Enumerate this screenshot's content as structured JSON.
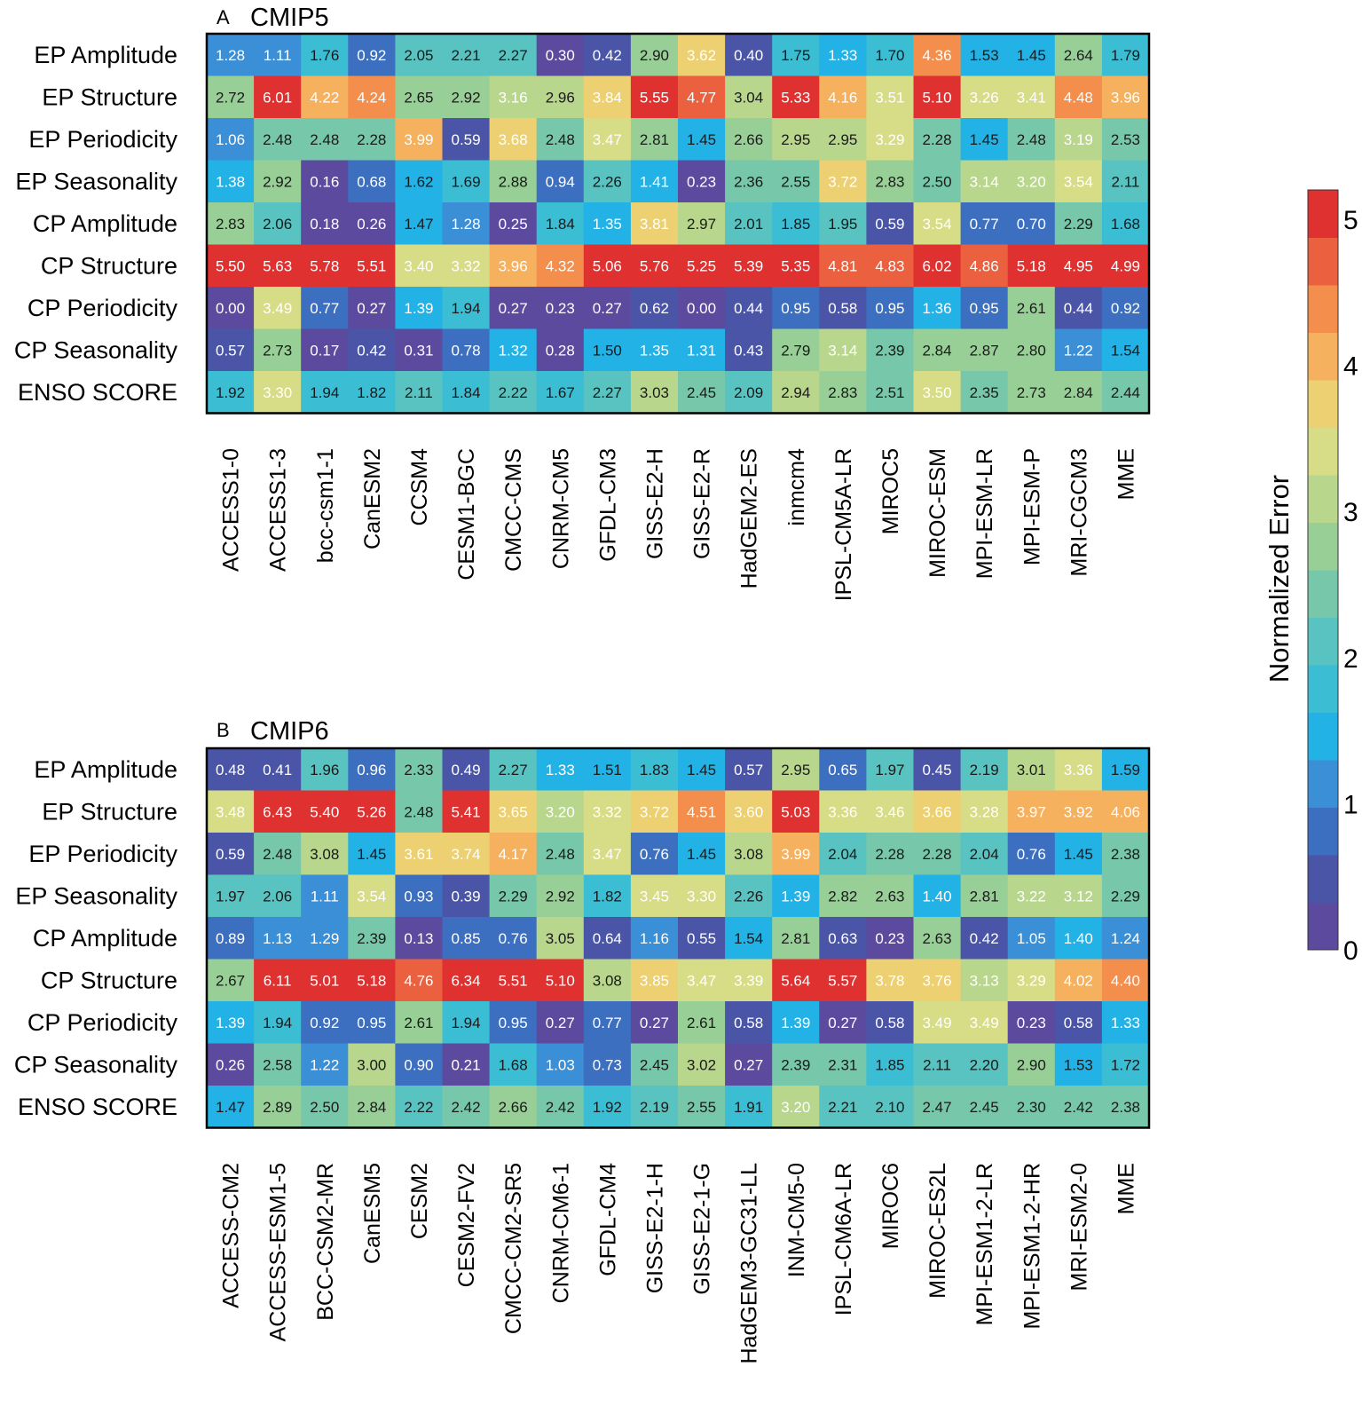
{
  "chart_data": [
    {
      "type": "heatmap",
      "panel_letter": "A",
      "title": "CMIP5",
      "rows": [
        "EP Amplitude",
        "EP Structure",
        "EP Periodicity",
        "EP Seasonality",
        "CP Amplitude",
        "CP Structure",
        "CP Periodicity",
        "CP Seasonality",
        "ENSO SCORE"
      ],
      "columns": [
        "ACCESS1-0",
        "ACCESS1-3",
        "bcc-csm1-1",
        "CanESM2",
        "CCSM4",
        "CESM1-BGC",
        "CMCC-CMS",
        "CNRM-CM5",
        "GFDL-CM3",
        "GISS-E2-H",
        "GISS-E2-R",
        "HadGEM2-ES",
        "inmcm4",
        "IPSL-CM5A-LR",
        "MIROC5",
        "MIROC-ESM",
        "MPI-ESM-LR",
        "MPI-ESM-P",
        "MRI-CGCM3",
        "MME"
      ],
      "values": [
        [
          1.28,
          1.11,
          1.76,
          0.92,
          2.05,
          2.21,
          2.27,
          0.3,
          0.42,
          2.9,
          3.62,
          0.4,
          1.75,
          1.33,
          1.7,
          4.36,
          1.53,
          1.45,
          2.64,
          1.79
        ],
        [
          2.72,
          6.01,
          4.22,
          4.24,
          2.65,
          2.92,
          3.16,
          2.96,
          3.84,
          5.55,
          4.77,
          3.04,
          5.33,
          4.16,
          3.51,
          5.1,
          3.26,
          3.41,
          4.48,
          3.96
        ],
        [
          1.06,
          2.48,
          2.48,
          2.28,
          3.99,
          0.59,
          3.68,
          2.48,
          3.47,
          2.81,
          1.45,
          2.66,
          2.95,
          2.95,
          3.29,
          2.28,
          1.45,
          2.48,
          3.19,
          2.53
        ],
        [
          1.38,
          2.92,
          0.16,
          0.68,
          1.62,
          1.69,
          2.88,
          0.94,
          2.26,
          1.41,
          0.23,
          2.36,
          2.55,
          3.72,
          2.83,
          2.5,
          3.14,
          3.2,
          3.54,
          2.11
        ],
        [
          2.83,
          2.06,
          0.18,
          0.26,
          1.47,
          1.28,
          0.25,
          1.84,
          1.35,
          3.81,
          2.97,
          2.01,
          1.85,
          1.95,
          0.59,
          3.54,
          0.77,
          0.7,
          2.29,
          1.68
        ],
        [
          5.5,
          5.63,
          5.78,
          5.51,
          3.4,
          3.32,
          3.96,
          4.32,
          5.06,
          5.76,
          5.25,
          5.39,
          5.35,
          4.81,
          4.83,
          6.02,
          4.86,
          5.18,
          4.95,
          4.99
        ],
        [
          0.0,
          3.49,
          0.77,
          0.27,
          1.39,
          1.94,
          0.27,
          0.23,
          0.27,
          0.62,
          0.0,
          0.44,
          0.95,
          0.58,
          0.95,
          1.36,
          0.95,
          2.61,
          0.44,
          0.92
        ],
        [
          0.57,
          2.73,
          0.17,
          0.42,
          0.31,
          0.78,
          1.32,
          0.28,
          1.5,
          1.35,
          1.31,
          0.43,
          2.79,
          3.14,
          2.39,
          2.84,
          2.87,
          2.8,
          1.22,
          1.54
        ],
        [
          1.92,
          3.3,
          1.94,
          1.82,
          2.11,
          1.84,
          2.22,
          1.67,
          2.27,
          3.03,
          2.45,
          2.09,
          2.94,
          2.83,
          2.51,
          3.5,
          2.35,
          2.73,
          2.84,
          2.44
        ]
      ],
      "value_format": "2 decimals"
    },
    {
      "type": "heatmap",
      "panel_letter": "B",
      "title": "CMIP6",
      "rows": [
        "EP Amplitude",
        "EP Structure",
        "EP Periodicity",
        "EP Seasonality",
        "CP Amplitude",
        "CP Structure",
        "CP Periodicity",
        "CP Seasonality",
        "ENSO SCORE"
      ],
      "columns": [
        "ACCESS-CM2",
        "ACCESS-ESM1-5",
        "BCC-CSM2-MR",
        "CanESM5",
        "CESM2",
        "CESM2-FV2",
        "CMCC-CM2-SR5",
        "CNRM-CM6-1",
        "GFDL-CM4",
        "GISS-E2-1-H",
        "GISS-E2-1-G",
        "HadGEM3-GC31-LL",
        "INM-CM5-0",
        "IPSL-CM6A-LR",
        "MIROC6",
        "MIROC-ES2L",
        "MPI-ESM1-2-LR",
        "MPI-ESM1-2-HR",
        "MRI-ESM2-0",
        "MME"
      ],
      "values": [
        [
          0.48,
          0.41,
          1.96,
          0.96,
          2.33,
          0.49,
          2.27,
          1.33,
          1.51,
          1.83,
          1.45,
          0.57,
          2.95,
          0.65,
          1.97,
          0.45,
          2.19,
          3.01,
          3.36,
          1.59
        ],
        [
          3.48,
          6.43,
          5.4,
          5.26,
          2.48,
          5.41,
          3.65,
          3.2,
          3.32,
          3.72,
          4.51,
          3.6,
          5.03,
          3.36,
          3.46,
          3.66,
          3.28,
          3.97,
          3.92,
          4.06
        ],
        [
          0.59,
          2.48,
          3.08,
          1.45,
          3.61,
          3.74,
          4.17,
          2.48,
          3.47,
          0.76,
          1.45,
          3.08,
          3.99,
          2.04,
          2.28,
          2.28,
          2.04,
          0.76,
          1.45,
          2.38
        ],
        [
          1.97,
          2.06,
          1.11,
          3.54,
          0.93,
          0.39,
          2.29,
          2.92,
          1.82,
          3.45,
          3.3,
          2.26,
          1.39,
          2.82,
          2.63,
          1.4,
          2.81,
          3.22,
          3.12,
          2.29
        ],
        [
          0.89,
          1.13,
          1.29,
          2.39,
          0.13,
          0.85,
          0.76,
          3.05,
          0.64,
          1.16,
          0.55,
          1.54,
          2.81,
          0.63,
          0.23,
          2.63,
          0.42,
          1.05,
          1.4,
          1.24
        ],
        [
          2.67,
          6.11,
          5.01,
          5.18,
          4.76,
          6.34,
          5.51,
          5.1,
          3.08,
          3.85,
          3.47,
          3.39,
          5.64,
          5.57,
          3.78,
          3.76,
          3.13,
          3.29,
          4.02,
          4.4
        ],
        [
          1.39,
          1.94,
          0.92,
          0.95,
          2.61,
          1.94,
          0.95,
          0.27,
          0.77,
          0.27,
          2.61,
          0.58,
          1.39,
          0.27,
          0.58,
          3.49,
          3.49,
          0.23,
          0.58,
          1.33
        ],
        [
          0.26,
          2.58,
          1.22,
          3.0,
          0.9,
          0.21,
          1.68,
          1.03,
          0.73,
          2.45,
          3.02,
          0.27,
          2.39,
          2.31,
          1.85,
          2.11,
          2.2,
          2.9,
          1.53,
          1.72
        ],
        [
          1.47,
          2.89,
          2.5,
          2.84,
          2.22,
          2.42,
          2.66,
          2.42,
          1.92,
          2.19,
          2.55,
          1.91,
          3.2,
          2.21,
          2.1,
          2.47,
          2.45,
          2.3,
          2.42,
          2.38
        ]
      ],
      "value_format": "2 decimals"
    }
  ],
  "colorbar": {
    "label": "Normalized Error",
    "ticks": [
      "0",
      "1",
      "2",
      "3",
      "4",
      "5"
    ],
    "range": [
      0,
      5.2
    ],
    "levels": 16,
    "colors": [
      "#5b4a9e",
      "#4a55a8",
      "#3d6fc0",
      "#3a8fd6",
      "#22b2e6",
      "#3bbdd4",
      "#58c3c0",
      "#77c7ab",
      "#98cf97",
      "#b8d68c",
      "#d6dd86",
      "#ecd071",
      "#f6b15e",
      "#f38e4d",
      "#eb603e",
      "#e03131"
    ]
  }
}
